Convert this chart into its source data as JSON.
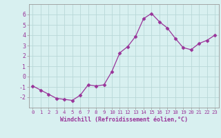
{
  "x": [
    0,
    1,
    2,
    3,
    4,
    5,
    6,
    7,
    8,
    9,
    10,
    11,
    12,
    13,
    14,
    15,
    16,
    17,
    18,
    19,
    20,
    21,
    22,
    23
  ],
  "y": [
    -0.9,
    -1.3,
    -1.7,
    -2.1,
    -2.2,
    -2.3,
    -1.8,
    -0.8,
    -0.9,
    -0.8,
    0.5,
    2.3,
    2.9,
    3.9,
    5.6,
    6.1,
    5.3,
    4.7,
    3.7,
    2.8,
    2.6,
    3.2,
    3.5,
    4.0
  ],
  "line_color": "#993399",
  "marker": "D",
  "marker_size": 2.5,
  "bg_color": "#d8f0f0",
  "grid_color": "#b8d8d8",
  "xlabel": "Windchill (Refroidissement éolien,°C)",
  "ylim": [
    -3,
    7
  ],
  "xlim": [
    -0.5,
    23.5
  ],
  "yticks": [
    -2,
    -1,
    0,
    1,
    2,
    3,
    4,
    5,
    6
  ],
  "xticks": [
    0,
    1,
    2,
    3,
    4,
    5,
    6,
    7,
    8,
    9,
    10,
    11,
    12,
    13,
    14,
    15,
    16,
    17,
    18,
    19,
    20,
    21,
    22,
    23
  ],
  "tick_color": "#993399",
  "label_color": "#993399",
  "font_family": "monospace",
  "xlabel_fontsize": 6.0,
  "tick_fontsize_x": 5.2,
  "tick_fontsize_y": 6.0,
  "spine_color": "#999999"
}
